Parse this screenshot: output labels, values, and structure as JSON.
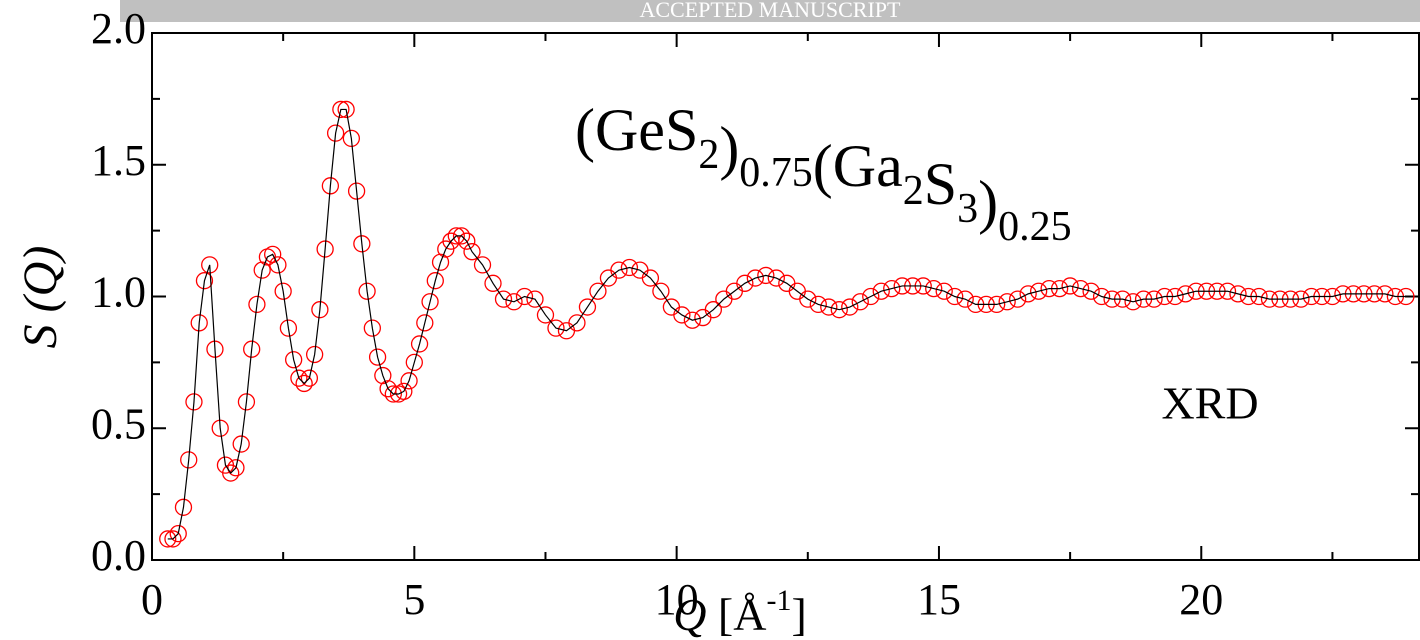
{
  "banner": "ACCEPTED MANUSCRIPT",
  "chart_data": {
    "type": "scatter",
    "title_parts": [
      [
        "(GeS",
        "2"
      ],
      [
        ")",
        "0.75"
      ],
      [
        "(Ga",
        "2"
      ],
      [
        "S",
        "3"
      ],
      [
        ")",
        "0.25"
      ]
    ],
    "ylabel": "S (Q)",
    "xlabel": {
      "var": "Q",
      "unit": " [Å",
      "sup": "-1",
      "close": "]"
    },
    "annotation": "XRD",
    "x": [
      0.3,
      0.4,
      0.5,
      0.6,
      0.7,
      0.8,
      0.9,
      1.0,
      1.1,
      1.2,
      1.3,
      1.4,
      1.5,
      1.6,
      1.7,
      1.8,
      1.9,
      2.0,
      2.1,
      2.2,
      2.3,
      2.4,
      2.5,
      2.6,
      2.7,
      2.8,
      2.9,
      3.0,
      3.1,
      3.2,
      3.3,
      3.4,
      3.5,
      3.6,
      3.7,
      3.8,
      3.9,
      4.0,
      4.1,
      4.2,
      4.3,
      4.4,
      4.5,
      4.6,
      4.7,
      4.8,
      4.9,
      5.0,
      5.1,
      5.2,
      5.3,
      5.4,
      5.5,
      5.6,
      5.7,
      5.8,
      5.9,
      6.0,
      6.1,
      6.3,
      6.5,
      6.7,
      6.9,
      7.1,
      7.3,
      7.5,
      7.7,
      7.9,
      8.1,
      8.3,
      8.5,
      8.7,
      8.9,
      9.1,
      9.3,
      9.5,
      9.7,
      9.9,
      10.1,
      10.3,
      10.5,
      10.7,
      10.9,
      11.1,
      11.3,
      11.5,
      11.7,
      11.9,
      12.1,
      12.3,
      12.5,
      12.7,
      12.9,
      13.1,
      13.3,
      13.5,
      13.7,
      13.9,
      14.1,
      14.3,
      14.5,
      14.7,
      14.9,
      15.1,
      15.3,
      15.5,
      15.7,
      15.9,
      16.1,
      16.3,
      16.5,
      16.7,
      16.9,
      17.1,
      17.3,
      17.5,
      17.7,
      17.9,
      18.1,
      18.3,
      18.5,
      18.7,
      18.9,
      19.1,
      19.3,
      19.5,
      19.7,
      19.9,
      20.1,
      20.3,
      20.5,
      20.7,
      20.9,
      21.1,
      21.3,
      21.5,
      21.7,
      21.9,
      22.1,
      22.3,
      22.5,
      22.7,
      22.9,
      23.1,
      23.3,
      23.5,
      23.7,
      23.9
    ],
    "series": [
      {
        "color": "#ff0000",
        "line_color": "#000000",
        "values": [
          0.08,
          0.08,
          0.1,
          0.2,
          0.38,
          0.6,
          0.9,
          1.06,
          1.12,
          0.8,
          0.5,
          0.36,
          0.33,
          0.35,
          0.44,
          0.6,
          0.8,
          0.97,
          1.1,
          1.15,
          1.16,
          1.12,
          1.02,
          0.88,
          0.76,
          0.69,
          0.67,
          0.69,
          0.78,
          0.95,
          1.18,
          1.42,
          1.62,
          1.71,
          1.71,
          1.6,
          1.4,
          1.2,
          1.02,
          0.88,
          0.77,
          0.7,
          0.65,
          0.63,
          0.63,
          0.64,
          0.68,
          0.75,
          0.82,
          0.9,
          0.98,
          1.06,
          1.13,
          1.18,
          1.21,
          1.23,
          1.23,
          1.21,
          1.17,
          1.12,
          1.05,
          0.99,
          0.98,
          1.0,
          0.99,
          0.93,
          0.88,
          0.87,
          0.9,
          0.96,
          1.02,
          1.07,
          1.1,
          1.11,
          1.1,
          1.07,
          1.02,
          0.96,
          0.93,
          0.91,
          0.92,
          0.95,
          0.99,
          1.02,
          1.05,
          1.07,
          1.08,
          1.07,
          1.05,
          1.02,
          0.99,
          0.97,
          0.96,
          0.95,
          0.96,
          0.98,
          1.0,
          1.02,
          1.03,
          1.04,
          1.04,
          1.04,
          1.03,
          1.02,
          1.0,
          0.99,
          0.97,
          0.97,
          0.97,
          0.98,
          0.99,
          1.01,
          1.02,
          1.03,
          1.03,
          1.04,
          1.03,
          1.02,
          1.0,
          0.99,
          0.99,
          0.98,
          0.99,
          0.99,
          1.0,
          1.0,
          1.01,
          1.02,
          1.02,
          1.02,
          1.02,
          1.01,
          1.0,
          1.0,
          0.99,
          0.99,
          0.99,
          0.99,
          1.0,
          1.0,
          1.0,
          1.01,
          1.01,
          1.01,
          1.01,
          1.01,
          1.0,
          1.0
        ]
      }
    ],
    "xlim": [
      0,
      24.15
    ],
    "ylim": [
      0,
      2
    ],
    "xticks": [
      0,
      5,
      10,
      15,
      20
    ],
    "yticks": [
      {
        "value": 0,
        "label": "0.0"
      },
      0.5,
      {
        "value": 1,
        "label": "1.0"
      },
      1.5,
      {
        "value": 2,
        "label": "2.0"
      }
    ],
    "xminorticks": [
      2.5,
      7.5,
      12.5,
      17.5,
      22.5
    ],
    "yminorticks": [
      0.25,
      0.75,
      1.25,
      1.75
    ],
    "grid": false
  }
}
